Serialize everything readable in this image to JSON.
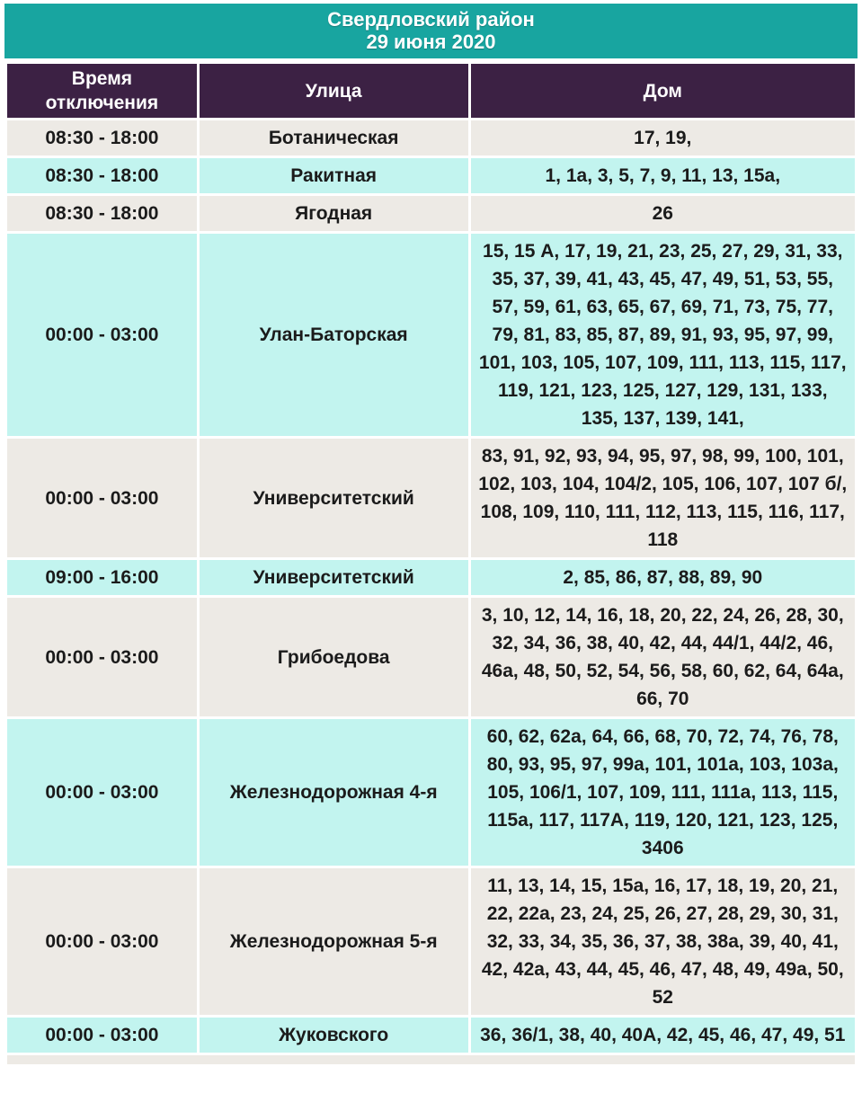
{
  "banner": {
    "region": "Свердловский район",
    "date": "29 июня 2020"
  },
  "table": {
    "headers": {
      "time": "Время отключения",
      "street": "Улица",
      "house": "Дом"
    },
    "rows": [
      {
        "time": "08:30 - 18:00",
        "street": "Ботаническая",
        "houses": "17, 19,"
      },
      {
        "time": "08:30 - 18:00",
        "street": "Ракитная",
        "houses": "1, 1а, 3, 5, 7, 9, 11, 13, 15а,"
      },
      {
        "time": "08:30 - 18:00",
        "street": "Ягодная",
        "houses": "26"
      },
      {
        "time": "00:00 - 03:00",
        "street": "Улан-Баторская",
        "houses": "15, 15 А, 17, 19, 21, 23, 25, 27, 29, 31, 33, 35, 37, 39, 41, 43, 45, 47, 49, 51, 53, 55, 57, 59, 61, 63, 65, 67, 69, 71, 73, 75, 77, 79, 81, 83, 85, 87, 89, 91, 93, 95, 97, 99, 101, 103, 105, 107, 109, 111, 113, 115, 117, 119, 121, 123, 125, 127, 129, 131, 133, 135, 137, 139, 141,"
      },
      {
        "time": "00:00 - 03:00",
        "street": "Университетский",
        "houses": "83, 91, 92, 93, 94, 95, 97, 98, 99, 100, 101, 102, 103, 104, 104/2, 105, 106, 107, 107 б/, 108, 109, 110, 111, 112, 113, 115, 116, 117, 118"
      },
      {
        "time": "09:00 - 16:00",
        "street": "Университетский",
        "houses": "2, 85, 86, 87, 88, 89, 90"
      },
      {
        "time": "00:00 - 03:00",
        "street": "Грибоедова",
        "houses": "3, 10, 12, 14, 16, 18, 20, 22, 24, 26, 28, 30, 32, 34, 36, 38, 40, 42, 44, 44/1, 44/2, 46, 46а, 48, 50, 52, 54, 56, 58, 60, 62, 64, 64а, 66, 70"
      },
      {
        "time": "00:00 - 03:00",
        "street": "Железнодорожная 4-я",
        "houses": "60, 62, 62а, 64, 66, 68, 70, 72, 74, 76, 78, 80, 93, 95, 97, 99а, 101, 101а, 103, 103а, 105, 106/1, 107, 109, 111, 111а, 113, 115, 115а, 117, 117А, 119, 120, 121, 123, 125, 3406"
      },
      {
        "time": "00:00 - 03:00",
        "street": "Железнодорожная 5-я",
        "houses": "11, 13, 14, 15, 15а, 16, 17, 18, 19, 20, 21, 22, 22а, 23, 24, 25, 26, 27, 28, 29, 30, 31, 32, 33, 34, 35, 36, 37, 38, 38а, 39, 40, 41, 42, 42а, 43, 44, 45, 46, 47, 48, 49, 49а, 50, 52"
      },
      {
        "time": "00:00 - 03:00",
        "street": "Жуковского",
        "houses": "36, 36/1, 38, 40, 40А, 42, 45, 46, 47, 49, 51"
      }
    ]
  },
  "colors": {
    "banner_bg": "#18A5A0",
    "header_bg": "#3C2144",
    "row_gray": "#EDEAE5",
    "row_cyan": "#C2F4EF",
    "grid_white": "#FFFFFF",
    "text_dark": "#1B1B1B",
    "text_light": "#FFFFFF"
  }
}
